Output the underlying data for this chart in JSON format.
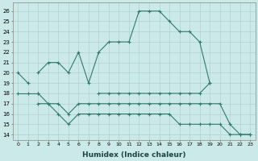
{
  "xlabel": "Humidex (Indice chaleur)",
  "x": [
    0,
    1,
    2,
    3,
    4,
    5,
    6,
    7,
    8,
    9,
    10,
    11,
    12,
    13,
    14,
    15,
    16,
    17,
    18,
    19,
    20,
    21,
    22,
    23
  ],
  "main_curve": [
    20,
    19,
    null,
    null,
    null,
    null,
    null,
    null,
    null,
    null,
    null,
    null,
    null,
    null,
    null,
    null,
    null,
    null,
    null,
    null,
    null,
    null,
    null,
    null
  ],
  "big_curve": [
    null,
    null,
    20,
    21,
    21,
    20,
    22,
    19,
    22,
    23,
    23,
    23,
    26,
    26,
    26,
    25,
    24,
    24,
    23,
    19,
    null,
    null,
    null,
    null
  ],
  "flat_upper": [
    18,
    18,
    18,
    null,
    null,
    null,
    null,
    null,
    18,
    18,
    18,
    18,
    18,
    18,
    18,
    18,
    18,
    18,
    18,
    19,
    null,
    null,
    null,
    null
  ],
  "mid_line": [
    null,
    null,
    18,
    17,
    17,
    16,
    17,
    17,
    17,
    17,
    17,
    17,
    17,
    17,
    17,
    17,
    17,
    17,
    17,
    17,
    17,
    15,
    14,
    14
  ],
  "bot_line": [
    null,
    null,
    17,
    17,
    16,
    15,
    16,
    16,
    16,
    16,
    16,
    16,
    16,
    16,
    16,
    16,
    15,
    15,
    15,
    15,
    15,
    14,
    14,
    14
  ],
  "ylim_min": 13.5,
  "ylim_max": 26.8,
  "yticks": [
    14,
    15,
    16,
    17,
    18,
    19,
    20,
    21,
    22,
    23,
    24,
    25,
    26
  ],
  "color": "#2e7b6e",
  "bg_color": "#cce9e9",
  "grid_color": "#b0d0d0",
  "figsize": [
    3.2,
    2.0
  ],
  "dpi": 100
}
